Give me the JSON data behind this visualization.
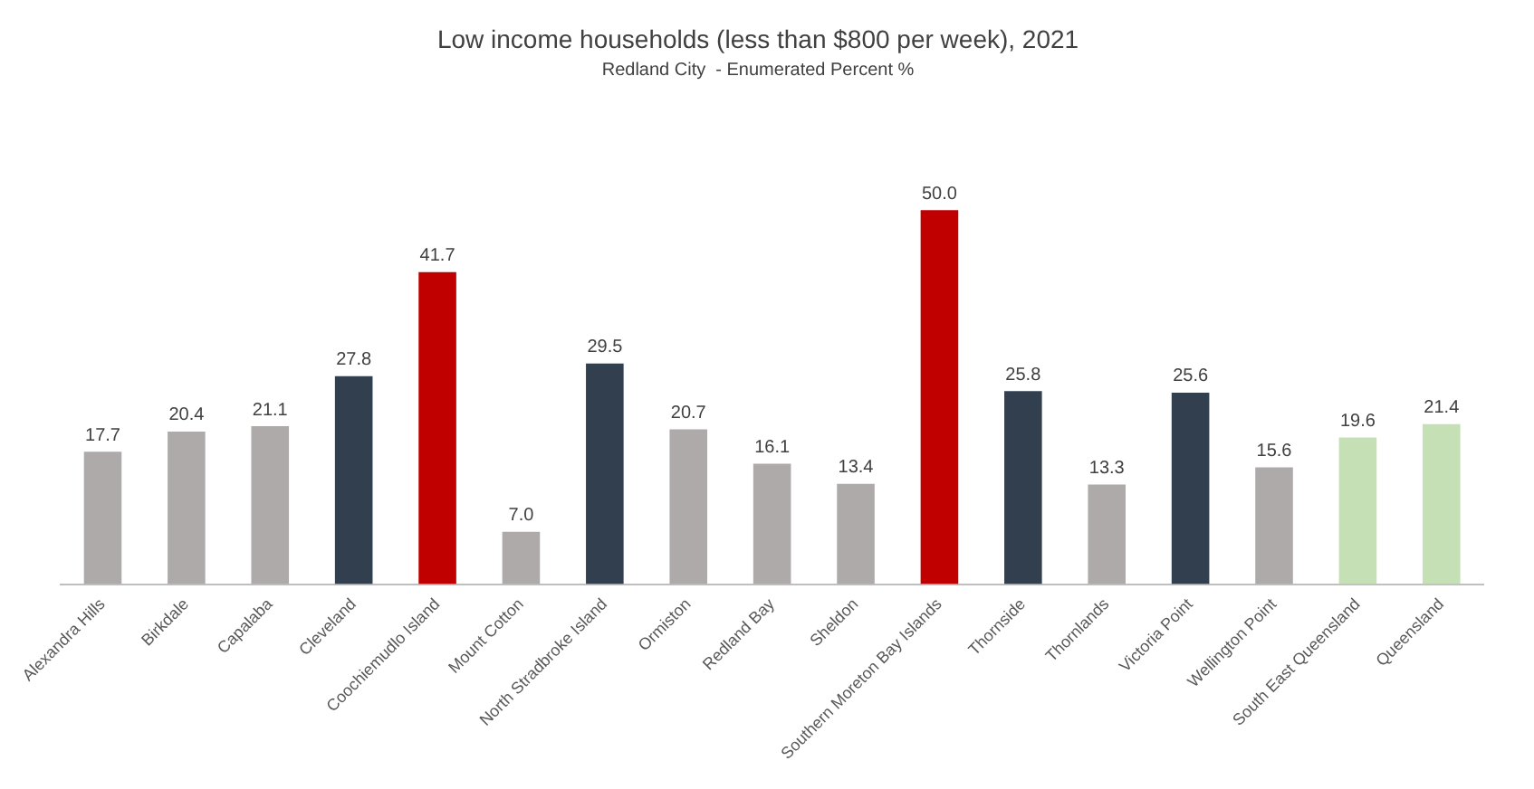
{
  "chart_data": {
    "type": "bar",
    "title": "Low income households (less than $800 per week), 2021",
    "subtitle": "Redland City  - Enumerated Percent %",
    "categories": [
      "Alexandra Hills",
      "Birkdale",
      "Capalaba",
      "Cleveland",
      "Coochiemudlo Island",
      "Mount Cotton",
      "North Stradbroke Island",
      "Ormiston",
      "Redland Bay",
      "Sheldon",
      "Southern Moreton Bay Islands",
      "Thornside",
      "Thornlands",
      "Victoria Point",
      "Wellington Point",
      "South East Queensland",
      "Queensland"
    ],
    "values": [
      17.7,
      20.4,
      21.1,
      27.8,
      41.7,
      7.0,
      29.5,
      20.7,
      16.1,
      13.4,
      50.0,
      25.8,
      13.3,
      25.6,
      15.6,
      19.6,
      21.4
    ],
    "colors": [
      "#aeaaaa",
      "#aeaaaa",
      "#aeaaaa",
      "#323f4f",
      "#c00000",
      "#aeaaaa",
      "#323f4f",
      "#aeaaaa",
      "#aeaaaa",
      "#aeaaaa",
      "#c00000",
      "#323f4f",
      "#aeaaaa",
      "#323f4f",
      "#aeaaaa",
      "#c5e0b4",
      "#c5e0b4"
    ],
    "value_labels": [
      "17.7",
      "20.4",
      "21.1",
      "27.8",
      "41.7",
      "7.0",
      "29.5",
      "20.7",
      "16.1",
      "13.4",
      "50.0",
      "25.8",
      "13.3",
      "25.6",
      "15.6",
      "19.6",
      "21.4"
    ],
    "grid": false,
    "legend": false
  }
}
